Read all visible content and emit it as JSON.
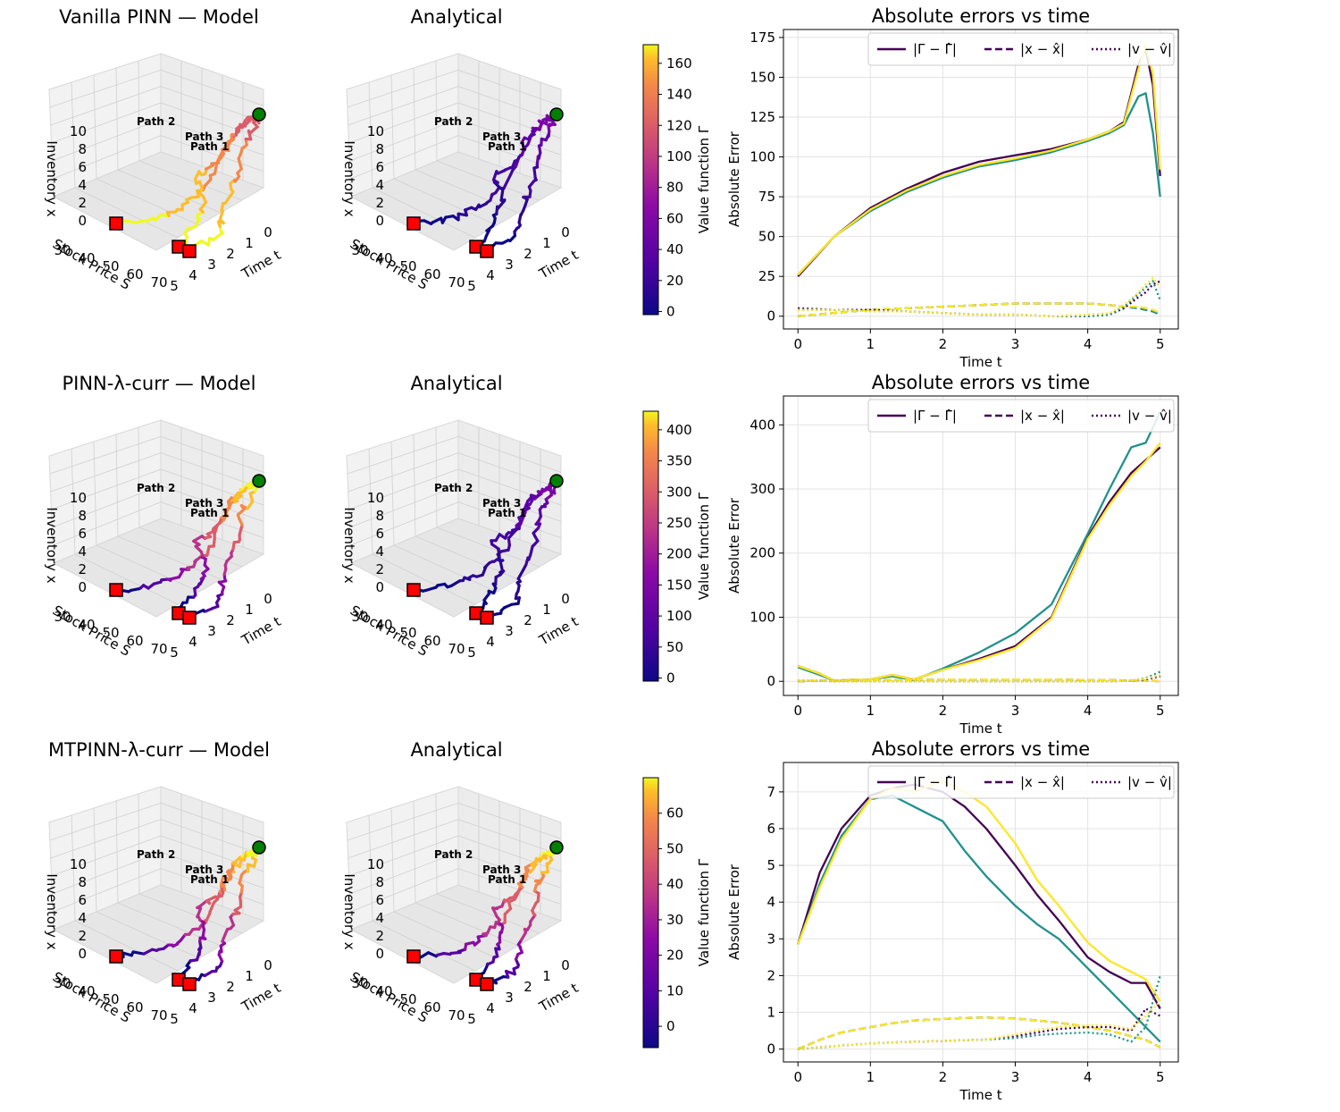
{
  "figure": {
    "rows": [
      {
        "model_title": "Vanilla PINN — Model",
        "analytical_title": "Analytical",
        "colorbar": {
          "label": "Value function Γ",
          "ticks": [
            0,
            20,
            40,
            60,
            80,
            100,
            120,
            140,
            160
          ],
          "range": [
            -2,
            172
          ]
        },
        "model_scheme": "mixed",
        "analytical_scheme": "low"
      },
      {
        "model_title": "PINN-λ-curr — Model",
        "analytical_title": "Analytical",
        "colorbar": {
          "label": "Value function Γ",
          "ticks": [
            0,
            50,
            100,
            150,
            200,
            250,
            300,
            350,
            400
          ],
          "range": [
            -5,
            430
          ]
        },
        "model_scheme": "mixed",
        "analytical_scheme": "low"
      },
      {
        "model_title": "MTPINN-λ-curr — Model",
        "analytical_title": "Analytical",
        "colorbar": {
          "label": "Value function Γ",
          "ticks": [
            0,
            10,
            20,
            30,
            40,
            50,
            60
          ],
          "range": [
            -6,
            70
          ]
        },
        "model_scheme": "mixed",
        "analytical_scheme": "mixed"
      }
    ],
    "axes3d": {
      "xlabel": "Stock Price S",
      "ylabel": "Time t",
      "zlabel": "Inventory x",
      "s_ticks": [
        "30",
        "40",
        "50",
        "60",
        "70"
      ],
      "t_ticks": [
        "0",
        "1",
        "2",
        "3",
        "4",
        "5"
      ],
      "x_ticks": [
        "0",
        "2",
        "4",
        "6",
        "8",
        "10"
      ],
      "path_labels": [
        "Path 1",
        "Path 2",
        "Path 3"
      ]
    },
    "legend": {
      "gamma": "|Γ − Γ̂|",
      "x": "|x − x̂|",
      "v": "|v − v̂|"
    },
    "colors": {
      "path1": "#440154",
      "path2": "#21918c",
      "path3": "#fde725",
      "start_marker": "#ff0000",
      "end_marker": "#008000"
    }
  },
  "chart_data": [
    {
      "type": "line",
      "title": "Absolute errors vs time",
      "xlabel": "Time t",
      "ylabel": "Absolute Error",
      "xlim": [
        -0.2,
        5.25
      ],
      "ylim": [
        -8,
        180
      ],
      "xticks": [
        0,
        1,
        2,
        3,
        4,
        5
      ],
      "yticks": [
        0,
        25,
        50,
        75,
        100,
        125,
        150,
        175
      ],
      "x": [
        0,
        0.5,
        1,
        1.5,
        2,
        2.5,
        3,
        3.5,
        4,
        4.3,
        4.5,
        4.7,
        4.8,
        4.9,
        5
      ],
      "series": [
        {
          "name": "Path 1 |Γ−Γ̂|",
          "style": "solid",
          "color": "#440154",
          "values": [
            25,
            50,
            68,
            80,
            90,
            97,
            101,
            105,
            111,
            116,
            122,
            158,
            168,
            145,
            88
          ]
        },
        {
          "name": "Path 2 |Γ−Γ̂|",
          "style": "solid",
          "color": "#21918c",
          "values": [
            26,
            50,
            66,
            78,
            87,
            94,
            98,
            103,
            110,
            115,
            120,
            138,
            140,
            115,
            75
          ]
        },
        {
          "name": "Path 3 |Γ−Γ̂|",
          "style": "solid",
          "color": "#fde725",
          "values": [
            26,
            50,
            67,
            79,
            88,
            95,
            99,
            104,
            111,
            116,
            121,
            155,
            170,
            152,
            92
          ]
        },
        {
          "name": "Path 1 |x−x̂|",
          "style": "dashed",
          "color": "#440154",
          "values": [
            0,
            2,
            4,
            5,
            6,
            7,
            8,
            8,
            8,
            7,
            6,
            5,
            4,
            3,
            1
          ]
        },
        {
          "name": "Path 2 |x−x̂|",
          "style": "dashed",
          "color": "#21918c",
          "values": [
            0,
            2,
            4,
            5,
            6,
            7,
            8,
            8,
            8,
            7,
            6,
            5,
            4,
            3,
            1
          ]
        },
        {
          "name": "Path 3 |x−x̂|",
          "style": "dashed",
          "color": "#fde725",
          "values": [
            0,
            2,
            4,
            5,
            6,
            7,
            8,
            8,
            8,
            7,
            6,
            6,
            5,
            4,
            2
          ]
        },
        {
          "name": "Path 1 |v−v̂|",
          "style": "dotted",
          "color": "#440154",
          "values": [
            5,
            4,
            4,
            3,
            2,
            1,
            1,
            0,
            0,
            1,
            5,
            12,
            15,
            20,
            22
          ]
        },
        {
          "name": "Path 2 |v−v̂|",
          "style": "dotted",
          "color": "#21918c",
          "values": [
            4,
            4,
            3,
            3,
            2,
            1,
            1,
            0,
            0,
            1,
            6,
            14,
            18,
            22,
            10
          ]
        },
        {
          "name": "Path 3 |v−v̂|",
          "style": "dotted",
          "color": "#fde725",
          "values": [
            4,
            4,
            3,
            3,
            2,
            1,
            1,
            0,
            1,
            2,
            7,
            15,
            20,
            24,
            18
          ]
        }
      ],
      "legend": [
        "|Γ − Γ̂|",
        "|x − x̂|",
        "|v − v̂|"
      ]
    },
    {
      "type": "line",
      "title": "Absolute errors vs time",
      "xlabel": "Time t",
      "ylabel": "Absolute Error",
      "xlim": [
        -0.2,
        5.25
      ],
      "ylim": [
        -22,
        445
      ],
      "xticks": [
        0,
        1,
        2,
        3,
        4,
        5
      ],
      "yticks": [
        0,
        100,
        200,
        300,
        400
      ],
      "x": [
        0,
        0.3,
        0.5,
        0.8,
        1,
        1.3,
        1.6,
        2,
        2.5,
        3,
        3.5,
        4,
        4.3,
        4.6,
        4.8,
        5
      ],
      "series": [
        {
          "name": "Path 1 |Γ−Γ̂|",
          "style": "solid",
          "color": "#440154",
          "values": [
            24,
            12,
            1,
            3,
            3,
            10,
            3,
            18,
            35,
            55,
            100,
            225,
            280,
            325,
            345,
            365
          ]
        },
        {
          "name": "Path 2 |Γ−Γ̂|",
          "style": "solid",
          "color": "#21918c",
          "values": [
            22,
            10,
            1,
            3,
            3,
            8,
            2,
            20,
            45,
            75,
            120,
            230,
            300,
            365,
            372,
            420
          ]
        },
        {
          "name": "Path 3 |Γ−Γ̂|",
          "style": "solid",
          "color": "#fde725",
          "values": [
            24,
            12,
            1,
            3,
            3,
            10,
            3,
            18,
            33,
            52,
            98,
            222,
            275,
            320,
            343,
            372
          ]
        },
        {
          "name": "Path 1 |x−x̂|",
          "style": "dashed",
          "color": "#440154",
          "values": [
            0,
            1,
            1,
            1,
            2,
            2,
            2,
            3,
            3,
            3,
            3,
            2,
            2,
            1,
            1,
            0
          ]
        },
        {
          "name": "Path 2 |x−x̂|",
          "style": "dashed",
          "color": "#21918c",
          "values": [
            0,
            1,
            1,
            1,
            2,
            2,
            2,
            3,
            3,
            3,
            3,
            2,
            2,
            1,
            1,
            0
          ]
        },
        {
          "name": "Path 3 |x−x̂|",
          "style": "dashed",
          "color": "#fde725",
          "values": [
            0,
            1,
            1,
            1,
            2,
            2,
            2,
            3,
            3,
            3,
            3,
            2,
            2,
            1,
            1,
            0
          ]
        },
        {
          "name": "Path 1 |v−v̂|",
          "style": "dotted",
          "color": "#440154",
          "values": [
            1,
            1,
            0,
            0,
            0,
            0,
            0,
            0,
            0,
            0,
            0,
            0,
            0,
            1,
            3,
            8
          ]
        },
        {
          "name": "Path 2 |v−v̂|",
          "style": "dotted",
          "color": "#21918c",
          "values": [
            1,
            1,
            0,
            0,
            0,
            0,
            0,
            0,
            0,
            0,
            0,
            0,
            0,
            1,
            5,
            15
          ]
        },
        {
          "name": "Path 3 |v−v̂|",
          "style": "dotted",
          "color": "#fde725",
          "values": [
            1,
            1,
            0,
            0,
            0,
            0,
            0,
            0,
            0,
            0,
            0,
            0,
            0,
            1,
            4,
            10
          ]
        }
      ],
      "legend": [
        "|Γ − Γ̂|",
        "|x − x̂|",
        "|v − v̂|"
      ]
    },
    {
      "type": "line",
      "title": "Absolute errors vs time",
      "xlabel": "Time t",
      "ylabel": "Absolute Error",
      "xlim": [
        -0.2,
        5.25
      ],
      "ylim": [
        -0.35,
        7.8
      ],
      "xticks": [
        0,
        1,
        2,
        3,
        4,
        5
      ],
      "yticks": [
        0,
        1,
        2,
        3,
        4,
        5,
        6,
        7
      ],
      "x": [
        0,
        0.3,
        0.6,
        1,
        1.3,
        1.6,
        2,
        2.3,
        2.6,
        3,
        3.3,
        3.6,
        4,
        4.3,
        4.6,
        4.8,
        5
      ],
      "series": [
        {
          "name": "Path 1 |Γ−Γ̂|",
          "style": "solid",
          "color": "#440154",
          "values": [
            2.85,
            4.8,
            6.0,
            6.9,
            7.1,
            7.2,
            7.0,
            6.6,
            6.0,
            5.0,
            4.2,
            3.5,
            2.5,
            2.1,
            1.8,
            1.8,
            1.1
          ]
        },
        {
          "name": "Path 2 |Γ−Γ̂|",
          "style": "solid",
          "color": "#21918c",
          "values": [
            2.85,
            4.5,
            5.8,
            6.8,
            6.9,
            6.6,
            6.2,
            5.4,
            4.7,
            3.9,
            3.4,
            3.0,
            2.2,
            1.6,
            1.0,
            0.6,
            0.2
          ]
        },
        {
          "name": "Path 3 |Γ−Γ̂|",
          "style": "solid",
          "color": "#fde725",
          "values": [
            2.85,
            4.4,
            5.7,
            6.8,
            7.1,
            7.0,
            7.3,
            7.0,
            6.6,
            5.6,
            4.6,
            3.9,
            2.9,
            2.4,
            2.1,
            1.9,
            1.3
          ]
        },
        {
          "name": "Path 1 |x−x̂|",
          "style": "dashed",
          "color": "#440154",
          "values": [
            0.0,
            0.25,
            0.45,
            0.6,
            0.7,
            0.78,
            0.82,
            0.85,
            0.86,
            0.83,
            0.78,
            0.72,
            0.6,
            0.5,
            0.35,
            0.25,
            0.05
          ]
        },
        {
          "name": "Path 2 |x−x̂|",
          "style": "dashed",
          "color": "#21918c",
          "values": [
            0.0,
            0.25,
            0.45,
            0.6,
            0.7,
            0.78,
            0.82,
            0.85,
            0.86,
            0.83,
            0.78,
            0.72,
            0.6,
            0.5,
            0.35,
            0.25,
            0.05
          ]
        },
        {
          "name": "Path 3 |x−x̂|",
          "style": "dashed",
          "color": "#fde725",
          "values": [
            0.0,
            0.25,
            0.45,
            0.6,
            0.7,
            0.78,
            0.82,
            0.85,
            0.86,
            0.83,
            0.78,
            0.72,
            0.6,
            0.5,
            0.35,
            0.25,
            0.05
          ]
        },
        {
          "name": "Path 1 |v−v̂|",
          "style": "dotted",
          "color": "#440154",
          "values": [
            0.0,
            0.05,
            0.1,
            0.15,
            0.18,
            0.2,
            0.22,
            0.24,
            0.26,
            0.35,
            0.45,
            0.55,
            0.6,
            0.6,
            0.5,
            1.1,
            0.9
          ]
        },
        {
          "name": "Path 2 |v−v̂|",
          "style": "dotted",
          "color": "#21918c",
          "values": [
            0.0,
            0.05,
            0.1,
            0.15,
            0.18,
            0.2,
            0.22,
            0.24,
            0.26,
            0.3,
            0.38,
            0.42,
            0.45,
            0.4,
            0.2,
            0.6,
            2.0
          ]
        },
        {
          "name": "Path 3 |v−v̂|",
          "style": "dotted",
          "color": "#fde725",
          "values": [
            0.0,
            0.05,
            0.1,
            0.15,
            0.18,
            0.2,
            0.22,
            0.24,
            0.26,
            0.4,
            0.52,
            0.6,
            0.65,
            0.65,
            0.55,
            0.9,
            1.3
          ]
        }
      ],
      "legend": [
        "|Γ − Γ̂|",
        "|x − x̂|",
        "|v − v̂|"
      ]
    }
  ]
}
